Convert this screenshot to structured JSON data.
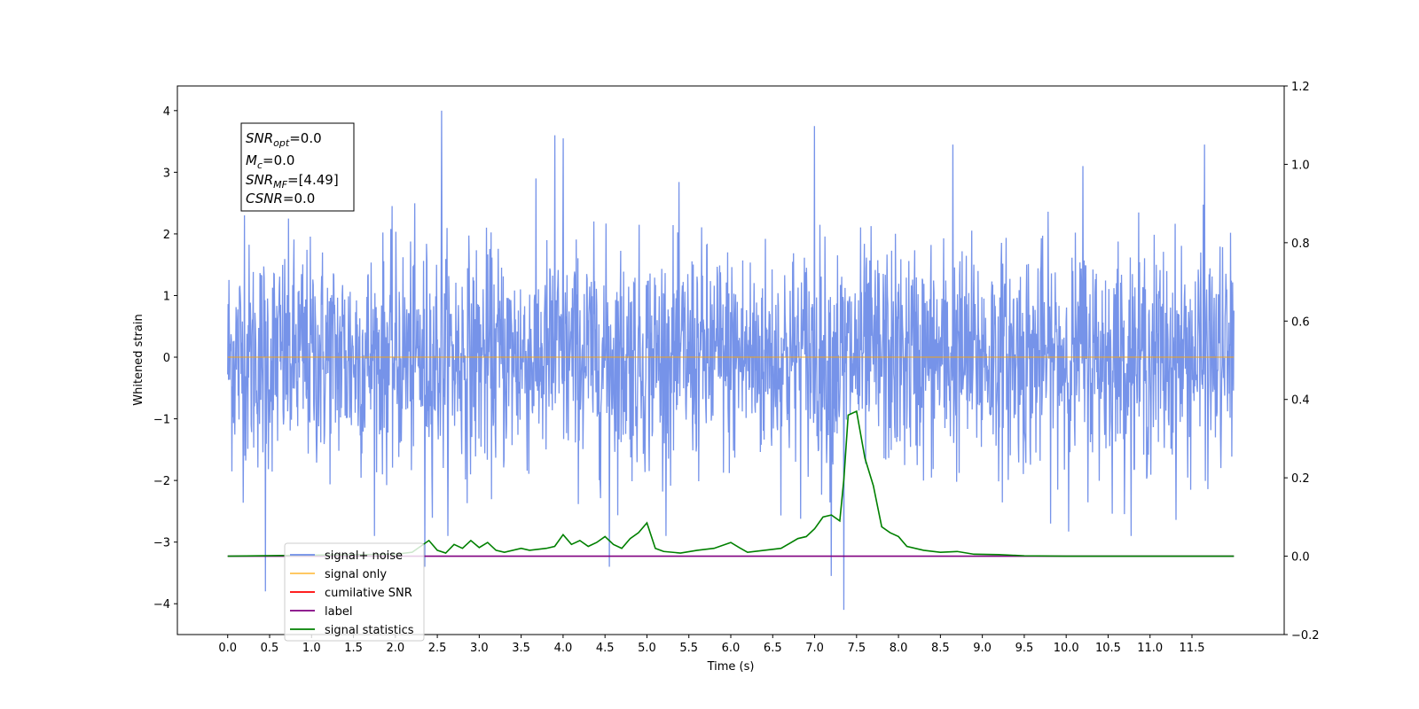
{
  "colors": {
    "signal_noise": "#6f8de8",
    "signal_only": "#ffa500",
    "cumulative_snr": "#ff0000",
    "label": "#800080",
    "signal_statistics": "#008000"
  },
  "chart_data": {
    "type": "line",
    "xlabel": "Time (s)",
    "ylabel": "Whitened strain",
    "xlim": [
      -0.6,
      12.6
    ],
    "ylim": [
      -4.5,
      4.4
    ],
    "y2lim": [
      -0.2,
      1.2
    ],
    "x_ticks": [
      "0.0",
      "0.5",
      "1.0",
      "1.5",
      "2.0",
      "2.5",
      "3.0",
      "3.5",
      "4.0",
      "4.5",
      "5.0",
      "5.5",
      "6.0",
      "6.5",
      "7.0",
      "7.5",
      "8.0",
      "8.5",
      "9.0",
      "9.5",
      "10.0",
      "10.5",
      "11.0",
      "11.5"
    ],
    "y_ticks": [
      "4",
      "3",
      "2",
      "1",
      "0",
      "−1",
      "−2",
      "−3",
      "−4"
    ],
    "y2_ticks": [
      "1.2",
      "1.0",
      "0.8",
      "0.6",
      "0.4",
      "0.2",
      "0.0",
      "−0.2"
    ],
    "legend_position": "lower-left",
    "annotation": {
      "snr_opt": {
        "base": "SNR",
        "sub": "opt",
        "value": "=0.0"
      },
      "mc": {
        "base": "M",
        "sub": "c",
        "value": "=0.0"
      },
      "snr_mf": {
        "base": "SNR",
        "sub": "MF",
        "value": "=[4.49]"
      },
      "csnr": {
        "base": "CSNR",
        "sub": "",
        "value": "=0.0"
      }
    },
    "series": [
      {
        "name": "signal+ noise",
        "axis": "left",
        "x_range": [
          0.0,
          12.0
        ],
        "n_points": 2400,
        "spikes": [
          {
            "x": 0.45,
            "y": -3.8
          },
          {
            "x": 2.55,
            "y": 4.0
          },
          {
            "x": 3.9,
            "y": 3.6
          },
          {
            "x": 4.0,
            "y": 3.55
          },
          {
            "x": 4.55,
            "y": -3.4
          },
          {
            "x": 7.0,
            "y": 3.75
          },
          {
            "x": 7.2,
            "y": -3.55
          },
          {
            "x": 7.35,
            "y": -4.1
          },
          {
            "x": 8.65,
            "y": 3.45
          },
          {
            "x": 11.65,
            "y": 3.45
          },
          {
            "x": 0.2,
            "y": 2.3
          },
          {
            "x": 2.35,
            "y": -3.4
          },
          {
            "x": 10.2,
            "y": 3.1
          }
        ]
      },
      {
        "name": "signal only",
        "axis": "left",
        "x": [
          0.0,
          12.0
        ],
        "y": [
          0.0,
          0.0
        ]
      },
      {
        "name": "cumilative SNR",
        "axis": "right",
        "x": [],
        "y": []
      },
      {
        "name": "label",
        "axis": "right",
        "x": [
          0.0,
          12.0
        ],
        "y": [
          0.0,
          0.0
        ]
      },
      {
        "name": "signal statistics",
        "axis": "right",
        "x": [
          0.0,
          2.0,
          2.2,
          2.4,
          2.5,
          2.6,
          2.7,
          2.8,
          2.9,
          3.0,
          3.1,
          3.2,
          3.3,
          3.5,
          3.6,
          3.8,
          3.9,
          4.0,
          4.1,
          4.2,
          4.3,
          4.4,
          4.5,
          4.6,
          4.7,
          4.8,
          4.9,
          5.0,
          5.1,
          5.2,
          5.4,
          5.6,
          5.8,
          6.0,
          6.1,
          6.2,
          6.4,
          6.6,
          6.8,
          6.9,
          7.0,
          7.1,
          7.2,
          7.3,
          7.35,
          7.4,
          7.5,
          7.6,
          7.7,
          7.8,
          7.9,
          8.0,
          8.1,
          8.3,
          8.5,
          8.7,
          8.9,
          9.2,
          9.5,
          10.0,
          12.0
        ],
        "y": [
          0.0,
          0.005,
          0.01,
          0.04,
          0.015,
          0.008,
          0.03,
          0.02,
          0.04,
          0.022,
          0.035,
          0.015,
          0.01,
          0.02,
          0.015,
          0.02,
          0.025,
          0.055,
          0.03,
          0.04,
          0.025,
          0.035,
          0.05,
          0.03,
          0.02,
          0.045,
          0.06,
          0.085,
          0.02,
          0.012,
          0.008,
          0.015,
          0.02,
          0.035,
          0.022,
          0.01,
          0.015,
          0.02,
          0.045,
          0.05,
          0.07,
          0.1,
          0.105,
          0.09,
          0.2,
          0.36,
          0.37,
          0.25,
          0.18,
          0.075,
          0.06,
          0.05,
          0.025,
          0.015,
          0.01,
          0.012,
          0.005,
          0.004,
          0.001,
          0.0,
          0.0
        ]
      }
    ]
  }
}
